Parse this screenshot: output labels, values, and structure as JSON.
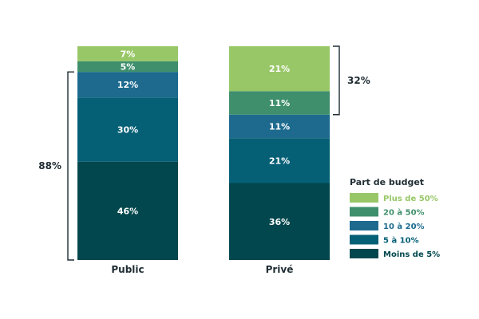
{
  "chart_data": {
    "type": "bar",
    "stacked": true,
    "categories": [
      "Public",
      "Privé"
    ],
    "ylim": [
      0,
      100
    ],
    "legend": {
      "title": "Part de budget",
      "placement": "right"
    },
    "series": [
      {
        "name": "Moins de 5%",
        "color": "#01474d",
        "values": [
          46,
          36
        ],
        "labels": [
          "46%",
          "36%"
        ]
      },
      {
        "name": "5 à 10%",
        "color": "#055f75",
        "values": [
          30,
          21
        ],
        "labels": [
          "30%",
          "21%"
        ]
      },
      {
        "name": "10 à 20%",
        "color": "#1d6a8e",
        "values": [
          12,
          11
        ],
        "labels": [
          "12%",
          "11%"
        ]
      },
      {
        "name": "20 à 50%",
        "color": "#3f8f6c",
        "values": [
          5,
          11
        ],
        "labels": [
          "5%",
          "11%"
        ]
      },
      {
        "name": "Plus de 50%",
        "color": "#98c768",
        "values": [
          7,
          21
        ],
        "labels": [
          "7%",
          "21%"
        ]
      }
    ],
    "braces": [
      {
        "category": "Public",
        "from_series": 0,
        "to_series": 2,
        "side": "left",
        "label": "88%"
      },
      {
        "category": "Privé",
        "from_series": 3,
        "to_series": 4,
        "side": "right",
        "label": "32%"
      }
    ]
  }
}
